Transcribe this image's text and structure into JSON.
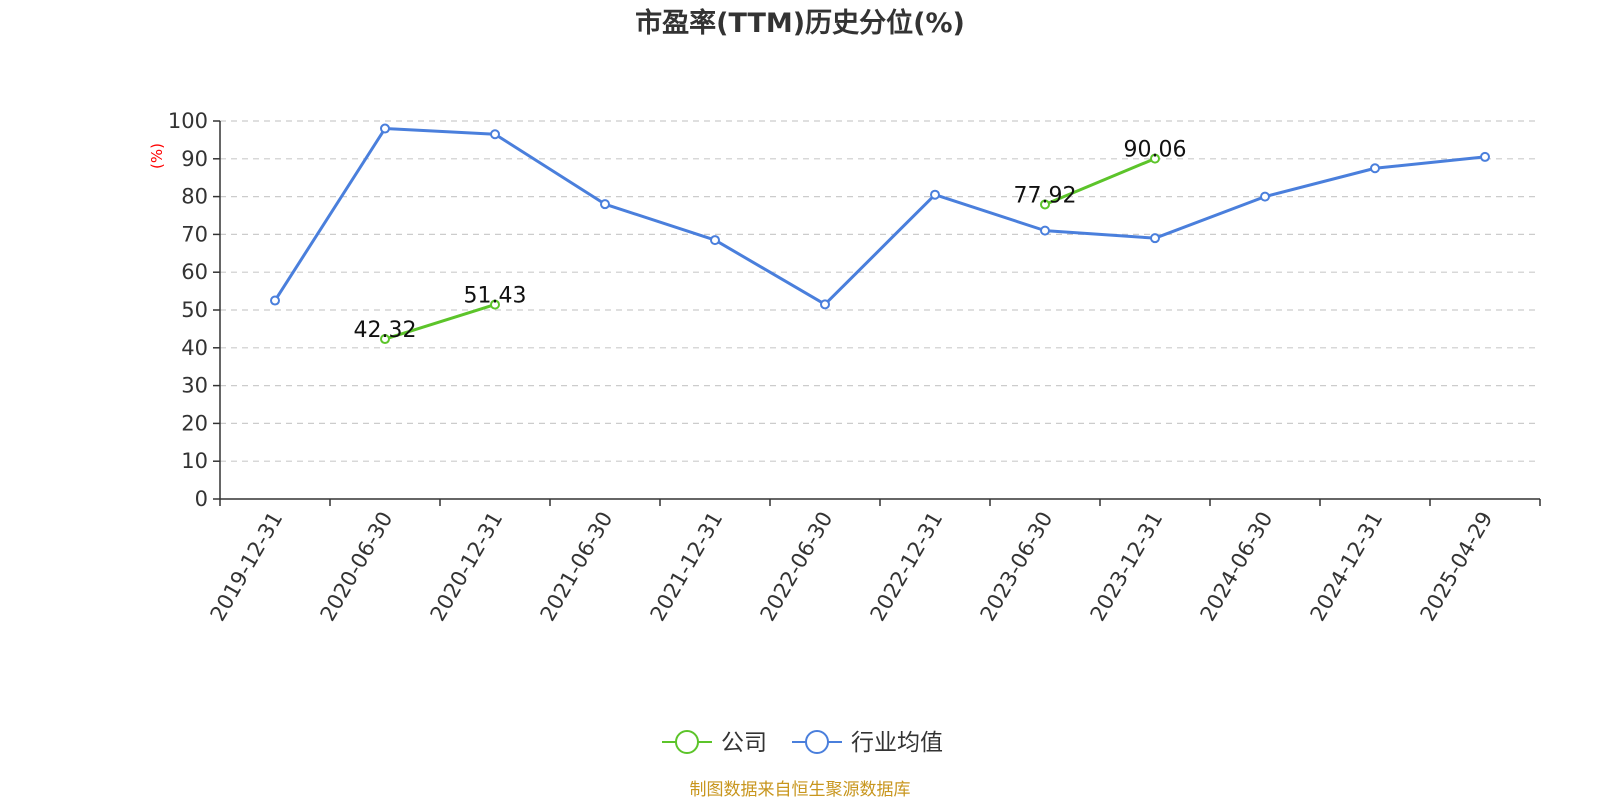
{
  "chart_data": {
    "type": "line",
    "title": "市盈率(TTM)历史分位(%)",
    "ylabel": "(%)",
    "ylim": [
      0,
      100
    ],
    "yticks": [
      0,
      10,
      20,
      30,
      40,
      50,
      60,
      70,
      80,
      90,
      100
    ],
    "categories": [
      "2019-12-31",
      "2020-06-30",
      "2020-12-31",
      "2021-06-30",
      "2021-12-31",
      "2022-06-30",
      "2022-12-31",
      "2023-06-30",
      "2023-12-31",
      "2024-06-30",
      "2024-12-31",
      "2025-04-29"
    ],
    "grid": true,
    "legend_position": "bottom",
    "series": [
      {
        "name": "公司",
        "color": "#5cc42a",
        "values": [
          null,
          42.32,
          51.43,
          null,
          null,
          null,
          null,
          77.92,
          90.06,
          null,
          null,
          null
        ],
        "labels": [
          "",
          "42.32",
          "51.43",
          "",
          "",
          "",
          "",
          "77.92",
          "90.06",
          "",
          "",
          ""
        ]
      },
      {
        "name": "行业均值",
        "color": "#4a7fdc",
        "values": [
          52.5,
          98,
          96.5,
          78,
          68.5,
          51.5,
          80.5,
          71,
          69,
          80,
          87.5,
          90.5
        ]
      }
    ],
    "source": "制图数据来自恒生聚源数据库"
  }
}
